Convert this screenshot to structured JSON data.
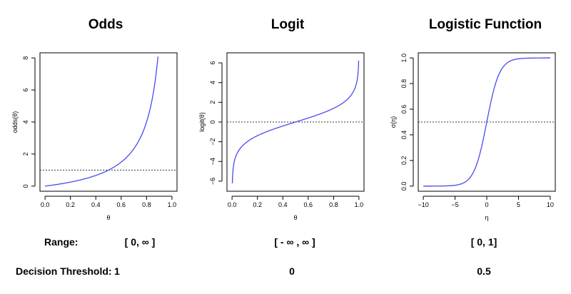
{
  "chart_data": [
    {
      "type": "line",
      "title": "Odds",
      "xlabel": "θ",
      "ylabel": "odds(θ)",
      "function": "odds",
      "xlim": [
        0,
        1
      ],
      "ylim": [
        0,
        8
      ],
      "x_ticks": [
        0.0,
        0.2,
        0.4,
        0.6,
        0.8,
        1.0
      ],
      "x_tick_labels": [
        "0.0",
        "0.2",
        "0.4",
        "0.6",
        "0.8",
        "1.0"
      ],
      "y_ticks": [
        0,
        2,
        4,
        6,
        8
      ],
      "y_tick_labels": [
        "0",
        "2",
        "4",
        "6",
        "8"
      ],
      "x_range_plotted": [
        0.0,
        0.89
      ],
      "threshold_line": 1,
      "series": [
        {
          "x": [
            0.0,
            0.1,
            0.2,
            0.3,
            0.4,
            0.5,
            0.6,
            0.7,
            0.8,
            0.85,
            0.89
          ],
          "y": [
            0.0,
            0.11,
            0.25,
            0.43,
            0.67,
            1.0,
            1.5,
            2.33,
            4.0,
            5.67,
            8.09
          ]
        }
      ]
    },
    {
      "type": "line",
      "title": "Logit",
      "xlabel": "θ",
      "ylabel": "logit(θ)",
      "function": "logit",
      "xlim": [
        0,
        1
      ],
      "ylim": [
        -6.5,
        6.5
      ],
      "x_ticks": [
        0.0,
        0.2,
        0.4,
        0.6,
        0.8,
        1.0
      ],
      "x_tick_labels": [
        "0.0",
        "0.2",
        "0.4",
        "0.6",
        "0.8",
        "1.0"
      ],
      "y_ticks": [
        -6,
        -4,
        -2,
        0,
        2,
        4,
        6
      ],
      "y_tick_labels": [
        "−6",
        "−4",
        "−2",
        "0",
        "2",
        "4",
        "6"
      ],
      "x_range_plotted": [
        0.002,
        0.998
      ],
      "threshold_line": 0,
      "series": [
        {
          "x": [
            0.002,
            0.05,
            0.2,
            0.5,
            0.8,
            0.95,
            0.998
          ],
          "y": [
            -6.2,
            -2.94,
            -1.39,
            0.0,
            1.39,
            2.94,
            6.2
          ]
        }
      ]
    },
    {
      "type": "line",
      "title": "Logistic Function",
      "xlabel": "η",
      "ylabel": "σ(η)",
      "function": "logistic",
      "xlim": [
        -10,
        10
      ],
      "ylim": [
        0,
        1
      ],
      "x_ticks": [
        -10,
        -5,
        0,
        5,
        10
      ],
      "x_tick_labels": [
        "−10",
        "−5",
        "0",
        "5",
        "10"
      ],
      "y_ticks": [
        0.0,
        0.2,
        0.4,
        0.6,
        0.8,
        1.0
      ],
      "y_tick_labels": [
        "0.0",
        "0.2",
        "0.4",
        "0.6",
        "0.8",
        "1.0"
      ],
      "x_range_plotted": [
        -10,
        10
      ],
      "threshold_line": 0.5,
      "series": [
        {
          "x": [
            -10,
            -5,
            -2,
            0,
            2,
            5,
            10
          ],
          "y": [
            0.0,
            0.007,
            0.12,
            0.5,
            0.88,
            0.993,
            1.0
          ]
        }
      ]
    }
  ],
  "table": {
    "range_label": "Range:",
    "threshold_label": "Decision Threshold:",
    "ranges": [
      "[ 0, ∞ ]",
      "[ - ∞ , ∞ ]",
      "[ 0, 1]"
    ],
    "thresholds": [
      "1",
      "0",
      "0.5"
    ]
  }
}
